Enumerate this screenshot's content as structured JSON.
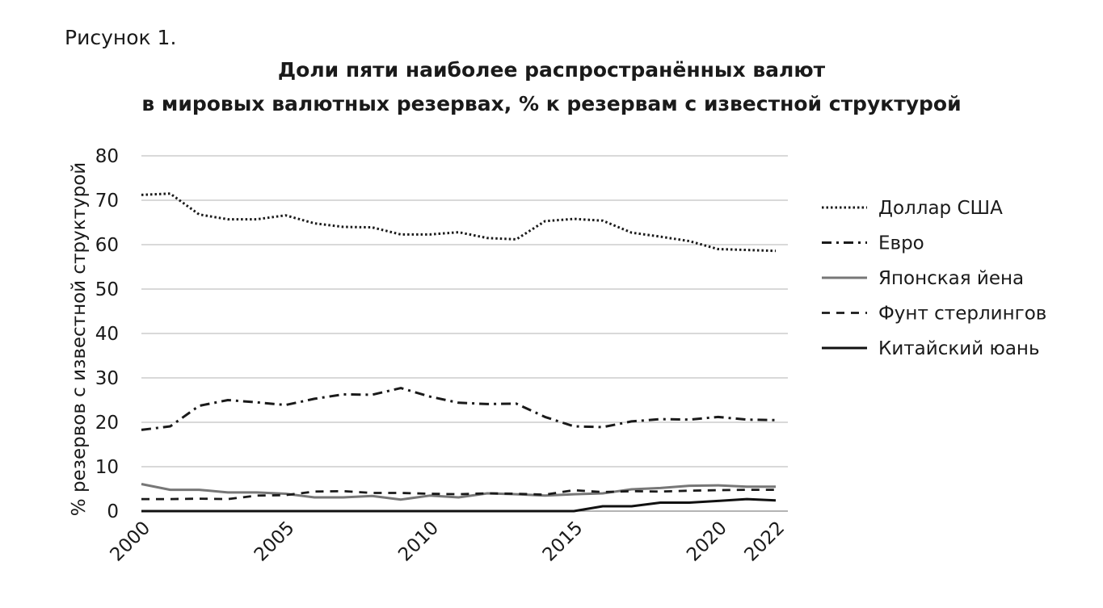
{
  "figure_label": "Рисунок 1.",
  "title_line1": "Доли пяти наиболее распространённых валют",
  "title_line2": "в мировых валютных резервах, % к резервам с известной структурой",
  "chart_data": {
    "type": "line",
    "title": "Доли пяти наиболее распространённых валют в мировых валютных резервах, % к резервам с известной структурой",
    "xlabel": "",
    "ylabel": "% резервов с известной структурой",
    "x": [
      2000,
      2001,
      2002,
      2003,
      2004,
      2005,
      2006,
      2007,
      2008,
      2009,
      2010,
      2011,
      2012,
      2013,
      2014,
      2015,
      2016,
      2017,
      2018,
      2019,
      2020,
      2021,
      2022
    ],
    "x_ticks": [
      "2000",
      "2005",
      "2010",
      "2015",
      "2020",
      "2022"
    ],
    "y_ticks": [
      "0",
      "10",
      "20",
      "30",
      "40",
      "50",
      "60",
      "70",
      "80"
    ],
    "ylim": [
      0,
      80
    ],
    "grid": true,
    "legend_position": "right",
    "series": [
      {
        "name": "Доллар США",
        "style": "dotted",
        "color": "#1a1a1a",
        "values": [
          71.2,
          71.5,
          66.8,
          65.7,
          65.7,
          66.6,
          64.8,
          64.0,
          63.9,
          62.3,
          62.3,
          62.8,
          61.5,
          61.2,
          65.3,
          65.8,
          65.4,
          62.7,
          61.8,
          60.8,
          59.0,
          58.8,
          58.6
        ]
      },
      {
        "name": "Евро",
        "style": "dashdot",
        "color": "#1a1a1a",
        "values": [
          18.3,
          19.1,
          23.7,
          25.0,
          24.5,
          23.9,
          25.3,
          26.3,
          26.2,
          27.7,
          25.8,
          24.4,
          24.1,
          24.2,
          21.2,
          19.1,
          18.9,
          20.2,
          20.7,
          20.6,
          21.2,
          20.6,
          20.5
        ]
      },
      {
        "name": "Японская йена",
        "style": "solid",
        "color": "#777777",
        "values": [
          6.1,
          4.8,
          4.8,
          4.2,
          4.2,
          3.9,
          3.1,
          3.1,
          3.4,
          2.6,
          3.5,
          3.1,
          4.0,
          3.8,
          3.5,
          3.8,
          4.0,
          4.9,
          5.2,
          5.7,
          5.8,
          5.5,
          5.5
        ]
      },
      {
        "name": "Фунт стерлингов",
        "style": "dashed",
        "color": "#1a1a1a",
        "values": [
          2.7,
          2.7,
          2.8,
          2.7,
          3.5,
          3.6,
          4.4,
          4.5,
          4.1,
          4.1,
          3.9,
          3.8,
          4.0,
          3.9,
          3.7,
          4.7,
          4.3,
          4.5,
          4.4,
          4.6,
          4.7,
          4.8,
          4.8
        ]
      },
      {
        "name": "Китайский юань",
        "style": "solid",
        "color": "#111111",
        "values": [
          0,
          0,
          0,
          0,
          0,
          0,
          0,
          0,
          0,
          0,
          0,
          0,
          0,
          0,
          0,
          0,
          1.1,
          1.1,
          1.9,
          1.9,
          2.3,
          2.7,
          2.4
        ]
      }
    ]
  }
}
